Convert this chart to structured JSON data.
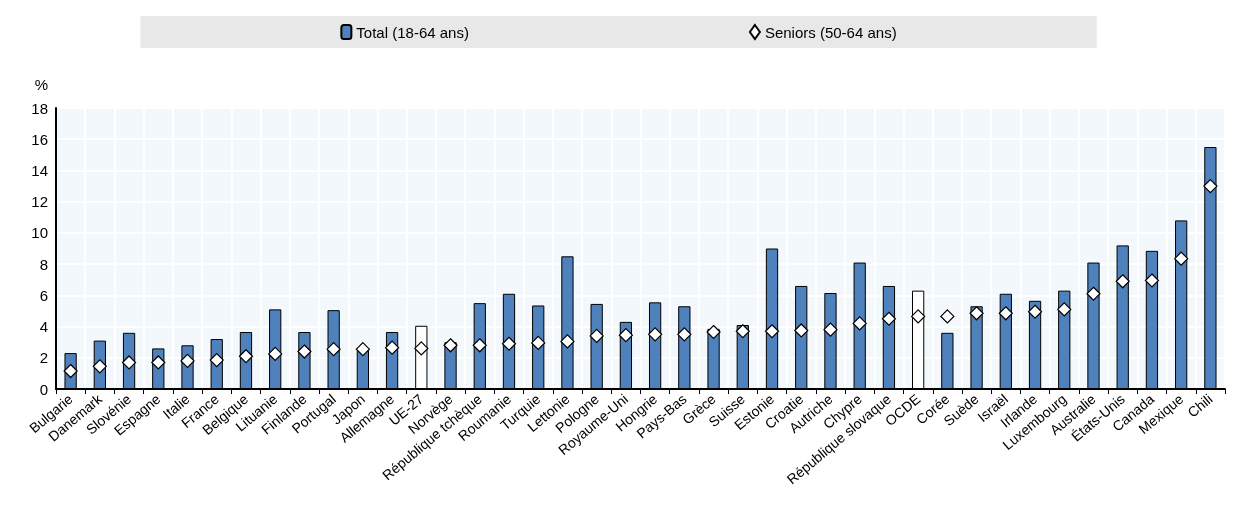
{
  "chart_data": {
    "type": "bar",
    "ylabel": "%",
    "categories": [
      "Bulgarie",
      "Danemark",
      "Slovénie",
      "Espagne",
      "Italie",
      "France",
      "Belgique",
      "Lituanie",
      "Finlande",
      "Portugal",
      "Japon",
      "Allemagne",
      "UE-27",
      "Norvège",
      "République tchèque",
      "Roumanie",
      "Turquie",
      "Lettonie",
      "Pologne",
      "Royaume-Uni",
      "Hongrie",
      "Pays-Bas",
      "Grèce",
      "Suisse",
      "Estonie",
      "Croatie",
      "Autriche",
      "Chypre",
      "République slovaque",
      "OCDE",
      "Corée",
      "Suède",
      "Israël",
      "Irlande",
      "Luxembourg",
      "Australie",
      "États-Unis",
      "Canada",
      "Mexique",
      "Chili"
    ],
    "series": [
      {
        "name": "Total (18-64 ans)",
        "color": "#4f81bd",
        "colors": [
          "#4f81bd",
          "#4f81bd",
          "#4f81bd",
          "#4f81bd",
          "#4f81bd",
          "#4f81bd",
          "#4f81bd",
          "#4f81bd",
          "#4f81bd",
          "#4f81bd",
          "#4f81bd",
          "#4f81bd",
          "#ffffff",
          "#4f81bd",
          "#4f81bd",
          "#4f81bd",
          "#4f81bd",
          "#4f81bd",
          "#4f81bd",
          "#4f81bd",
          "#4f81bd",
          "#4f81bd",
          "#4f81bd",
          "#4f81bd",
          "#4f81bd",
          "#4f81bd",
          "#4f81bd",
          "#4f81bd",
          "#4f81bd",
          "#ffffff",
          "#4f81bd",
          "#4f81bd",
          "#4f81bd",
          "#4f81bd",
          "#4f81bd",
          "#4f81bd",
          "#4f81bd",
          "#4f81bd",
          "#4f81bd",
          "#4f81bd"
        ],
        "values": [
          2.3,
          3.1,
          3.6,
          2.6,
          2.8,
          3.2,
          3.65,
          5.1,
          3.65,
          5.05,
          2.5,
          3.65,
          4.05,
          3.0,
          5.5,
          6.1,
          5.35,
          8.5,
          5.45,
          4.3,
          5.55,
          5.3,
          3.85,
          4.1,
          9.0,
          6.6,
          6.15,
          8.1,
          6.6,
          6.3,
          3.6,
          5.3,
          6.1,
          5.65,
          6.3,
          8.1,
          9.2,
          8.85,
          10.8,
          15.5
        ]
      },
      {
        "name": "Seniors (50-64 ans)",
        "type": "scatter",
        "marker": "diamond",
        "color": "#ffffff",
        "x": [
          "Bulgarie",
          "Danemark",
          "Slovénie",
          "Espagne",
          "Italie",
          "France",
          "Belgique",
          "Lituanie",
          "Finlande",
          "Portugal",
          "Japon",
          "Allemagne",
          "UE-27",
          "Norvège",
          "République tchèque",
          "Roumanie",
          "Turquie",
          "Lettonie",
          "Pologne",
          "Royaume-Uni",
          "Hongrie",
          "Pays-Bas",
          "Grèce",
          "Suisse",
          "Estonie",
          "Croatie",
          "Autriche",
          "Chypre",
          "République slovaque",
          "OCDE",
          "Corée",
          "Suède",
          "Israël",
          "Irlande",
          "Luxembourg",
          "Australie",
          "États-Unis",
          "Canada",
          "Mexique",
          "Chili"
        ],
        "values": [
          1.15,
          1.45,
          1.7,
          1.7,
          1.8,
          1.85,
          2.1,
          2.25,
          2.4,
          2.55,
          2.55,
          2.65,
          2.6,
          2.8,
          2.8,
          2.9,
          2.95,
          3.05,
          3.4,
          3.45,
          3.5,
          3.5,
          3.65,
          3.7,
          3.7,
          3.75,
          3.8,
          4.2,
          4.5,
          4.65,
          4.65,
          4.85,
          4.85,
          4.95,
          5.1,
          6.1,
          6.9,
          6.95,
          8.35,
          13.0
        ]
      }
    ],
    "ylim": [
      0,
      18
    ],
    "yticks": [
      0,
      2,
      4,
      6,
      8,
      10,
      12,
      14,
      16,
      18
    ],
    "grid": true,
    "legend": "top"
  }
}
